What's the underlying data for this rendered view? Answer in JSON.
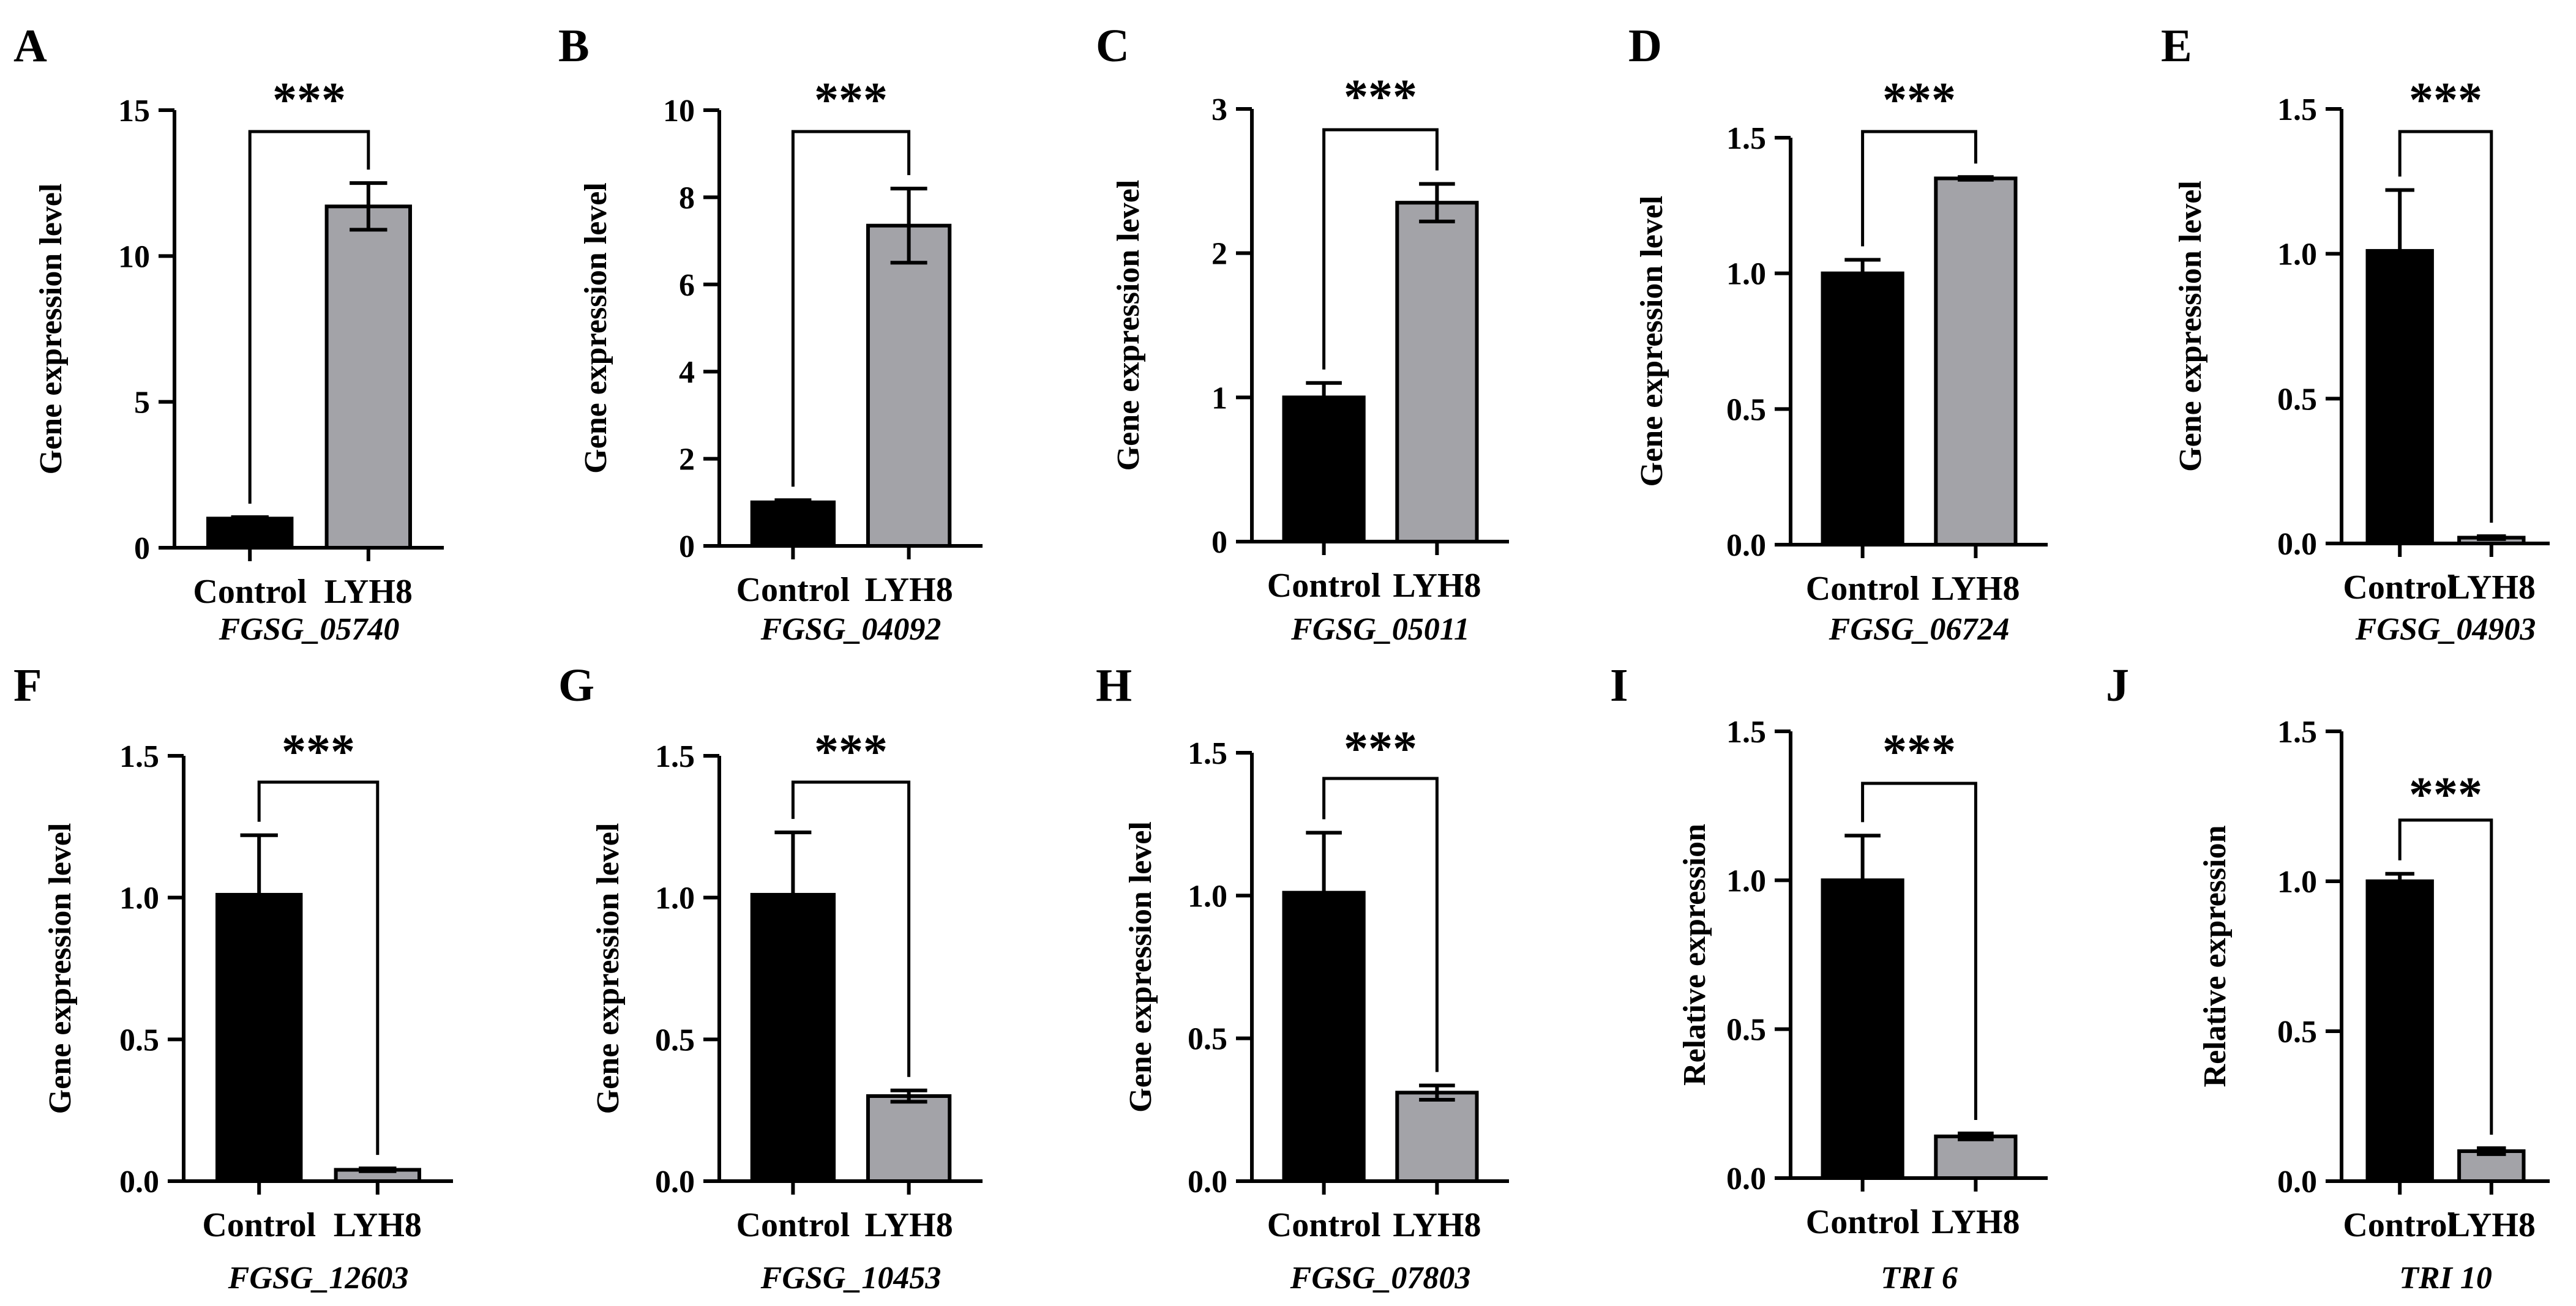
{
  "colors": {
    "control_bar": "#000000",
    "treatment_bar": "#a3a3a8",
    "axis": "#000000"
  },
  "chart_data": [
    {
      "type": "bar",
      "panel": "A",
      "gene": "FGSG_05740",
      "ylabel": "Gene expression level",
      "categories": [
        "Control",
        "LYH8"
      ],
      "values": [
        1.0,
        11.7
      ],
      "errors": [
        0.05,
        0.8
      ],
      "ylim": [
        0,
        15
      ],
      "yticks": [
        0,
        5,
        10,
        15
      ],
      "significance": "***"
    },
    {
      "type": "bar",
      "panel": "B",
      "gene": "FGSG_04092",
      "ylabel": "Gene expression level",
      "categories": [
        "Control",
        "LYH8"
      ],
      "values": [
        1.0,
        7.35
      ],
      "errors": [
        0.05,
        0.85
      ],
      "ylim": [
        0,
        10
      ],
      "yticks": [
        0,
        2,
        4,
        6,
        8,
        10
      ],
      "significance": "***"
    },
    {
      "type": "bar",
      "panel": "C",
      "gene": "FGSG_05011",
      "ylabel": "Gene expression level",
      "categories": [
        "Control",
        "LYH8"
      ],
      "values": [
        1.0,
        2.35
      ],
      "errors": [
        0.1,
        0.13
      ],
      "ylim": [
        0,
        3
      ],
      "yticks": [
        0,
        1,
        2,
        3
      ],
      "significance": "***"
    },
    {
      "type": "bar",
      "panel": "D",
      "gene": "FGSG_06724",
      "ylabel": "Gene expression level",
      "categories": [
        "Control",
        "LYH8"
      ],
      "values": [
        1.0,
        1.35
      ],
      "errors": [
        0.05,
        0.005
      ],
      "ylim": [
        0,
        1.5
      ],
      "yticks": [
        0.0,
        0.5,
        1.0,
        1.5
      ],
      "significance": "***"
    },
    {
      "type": "bar",
      "panel": "E",
      "gene": "FGSG_04903",
      "ylabel": "Gene expression level",
      "categories": [
        "Control",
        "LYH8"
      ],
      "values": [
        1.01,
        0.02
      ],
      "errors": [
        0.21,
        0.005
      ],
      "ylim": [
        0,
        1.5
      ],
      "yticks": [
        0.0,
        0.5,
        1.0,
        1.5
      ],
      "significance": "***"
    },
    {
      "type": "bar",
      "panel": "F",
      "gene": "FGSG_12603",
      "ylabel": "Gene expression level",
      "categories": [
        "Control",
        "LYH8"
      ],
      "values": [
        1.01,
        0.04
      ],
      "errors": [
        0.21,
        0.005
      ],
      "ylim": [
        0,
        1.5
      ],
      "yticks": [
        0.0,
        0.5,
        1.0,
        1.5
      ],
      "significance": "***"
    },
    {
      "type": "bar",
      "panel": "G",
      "gene": "FGSG_10453",
      "ylabel": "Gene expression level",
      "categories": [
        "Control",
        "LYH8"
      ],
      "values": [
        1.01,
        0.3
      ],
      "errors": [
        0.22,
        0.02
      ],
      "ylim": [
        0,
        1.5
      ],
      "yticks": [
        0.0,
        0.5,
        1.0,
        1.5
      ],
      "significance": "***"
    },
    {
      "type": "bar",
      "panel": "H",
      "gene": "FGSG_07803",
      "ylabel": "Gene expression level",
      "categories": [
        "Control",
        "LYH8"
      ],
      "values": [
        1.01,
        0.31
      ],
      "errors": [
        0.21,
        0.025
      ],
      "ylim": [
        0,
        1.5
      ],
      "yticks": [
        0.0,
        0.5,
        1.0,
        1.5
      ],
      "significance": "***"
    },
    {
      "type": "bar",
      "panel": "I",
      "gene": "TRI 6",
      "ylabel": "Relative expression",
      "categories": [
        "Control",
        "LYH8"
      ],
      "values": [
        1.0,
        0.14
      ],
      "errors": [
        0.15,
        0.01
      ],
      "ylim": [
        0,
        1.5
      ],
      "yticks": [
        0.0,
        0.5,
        1.0,
        1.5
      ],
      "significance": "***"
    },
    {
      "type": "bar",
      "panel": "J",
      "gene": "TRI 10",
      "ylabel": "Relative expression",
      "categories": [
        "Control",
        "LYH8"
      ],
      "values": [
        1.0,
        0.1
      ],
      "errors": [
        0.025,
        0.01
      ],
      "ylim": [
        0,
        1.5
      ],
      "yticks": [
        0.0,
        0.5,
        1.0,
        1.5
      ],
      "significance": "***"
    }
  ]
}
